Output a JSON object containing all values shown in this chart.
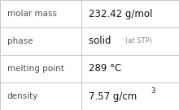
{
  "rows": [
    {
      "label": "molar mass",
      "value": "232.42 g/mol",
      "value_suffix": null,
      "superscript": null
    },
    {
      "label": "phase",
      "value": "solid",
      "value_suffix": "(at STP)",
      "superscript": null
    },
    {
      "label": "melting point",
      "value": "289 °C",
      "value_suffix": null,
      "superscript": null
    },
    {
      "label": "density",
      "value": "7.57 g/cm",
      "value_suffix": null,
      "superscript": "3"
    }
  ],
  "background_color": "#ffffff",
  "border_color": "#c8c8c8",
  "label_color": "#505050",
  "value_color": "#111111",
  "suffix_color": "#888888",
  "label_fontsize": 7.5,
  "value_fontsize": 8.5,
  "suffix_fontsize": 6.0,
  "super_fontsize": 6.0,
  "col_split": 0.455
}
